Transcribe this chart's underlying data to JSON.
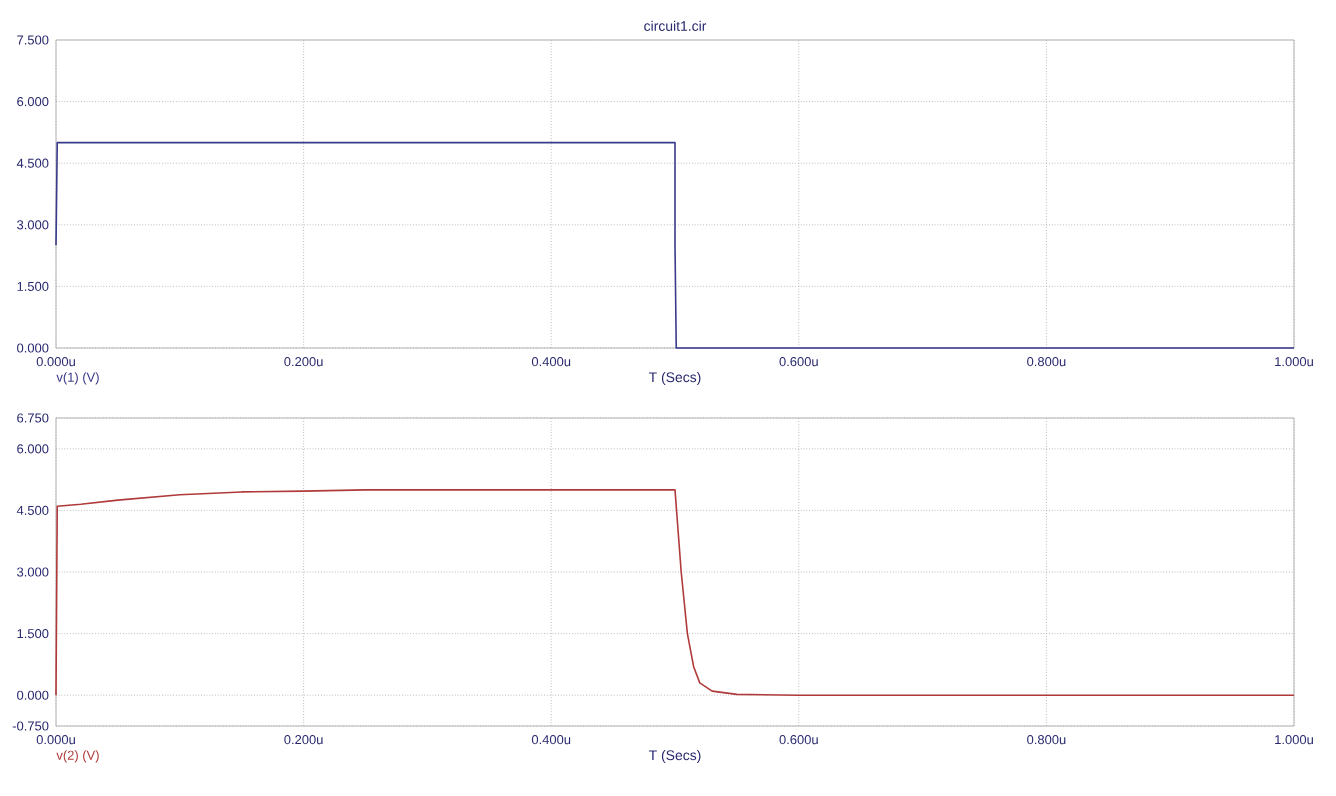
{
  "chart_data": [
    {
      "type": "line",
      "title": "circuit1.cir",
      "xlabel": "T (Secs)",
      "grid": true,
      "xlim": [
        0,
        1
      ],
      "xticks": [
        {
          "value": 0,
          "label": "0.000u"
        },
        {
          "value": 0.2,
          "label": "0.200u"
        },
        {
          "value": 0.4,
          "label": "0.400u"
        },
        {
          "value": 0.6,
          "label": "0.600u"
        },
        {
          "value": 0.8,
          "label": "0.800u"
        },
        {
          "value": 1,
          "label": "1.000u"
        }
      ],
      "ylim": [
        0,
        7.5
      ],
      "yticks": [
        {
          "value": 0,
          "label": "0.000"
        },
        {
          "value": 1.5,
          "label": "1.500"
        },
        {
          "value": 3,
          "label": "3.000"
        },
        {
          "value": 4.5,
          "label": "4.500"
        },
        {
          "value": 6,
          "label": "6.000"
        },
        {
          "value": 7.5,
          "label": "7.500"
        }
      ],
      "series": [
        {
          "name": "v(1) (V)",
          "color": "#3a3a8c",
          "x": [
            0,
            0.001,
            0.5,
            0.5,
            0.501,
            1
          ],
          "values": [
            2.5,
            5,
            5,
            2.5,
            0,
            0
          ]
        }
      ]
    },
    {
      "type": "line",
      "xlabel": "T (Secs)",
      "grid": true,
      "xlim": [
        0,
        1
      ],
      "xticks": [
        {
          "value": 0,
          "label": "0.000u"
        },
        {
          "value": 0.2,
          "label": "0.200u"
        },
        {
          "value": 0.4,
          "label": "0.400u"
        },
        {
          "value": 0.6,
          "label": "0.600u"
        },
        {
          "value": 0.8,
          "label": "0.800u"
        },
        {
          "value": 1,
          "label": "1.000u"
        }
      ],
      "ylim": [
        -0.75,
        6.75
      ],
      "yticks": [
        {
          "value": -0.75,
          "label": "-0.750"
        },
        {
          "value": 0,
          "label": "0.000"
        },
        {
          "value": 1.5,
          "label": "1.500"
        },
        {
          "value": 3,
          "label": "3.000"
        },
        {
          "value": 4.5,
          "label": "4.500"
        },
        {
          "value": 6,
          "label": "6.000"
        },
        {
          "value": 6.75,
          "label": "6.750"
        }
      ],
      "series": [
        {
          "name": "v(2) (V)",
          "color": "#b03a3a",
          "x": [
            0,
            0.001,
            0.02,
            0.05,
            0.1,
            0.15,
            0.2,
            0.25,
            0.5,
            0.505,
            0.51,
            0.515,
            0.52,
            0.53,
            0.55,
            0.6,
            1
          ],
          "values": [
            0,
            4.6,
            4.65,
            4.75,
            4.88,
            4.95,
            4.97,
            5.0,
            5.0,
            3.0,
            1.5,
            0.7,
            0.3,
            0.1,
            0.02,
            0,
            0
          ]
        }
      ]
    }
  ]
}
